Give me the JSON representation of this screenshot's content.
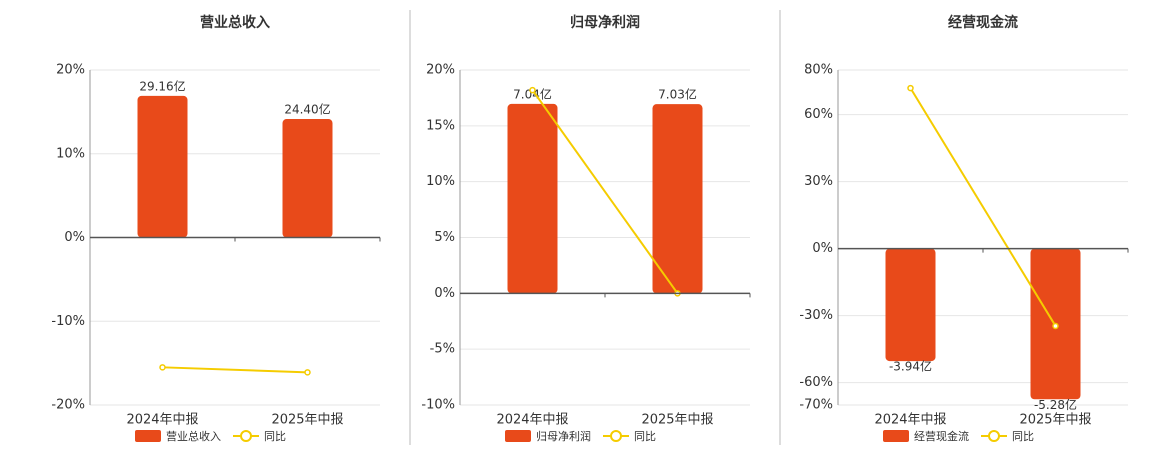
{
  "chart_data": [
    {
      "type": "bar",
      "title": "营业总收入",
      "categories": [
        "2024年中报",
        "2025年中报"
      ],
      "series": [
        {
          "name": "营业总收入",
          "color": "#e84a1a",
          "axis": "y2",
          "values": [
            29.16,
            24.4
          ],
          "value_labels": [
            "29.16亿",
            "24.40亿"
          ]
        },
        {
          "name": "同比",
          "type": "line",
          "color": "#f5cc00",
          "values": [
            -15.5,
            -16.1
          ]
        }
      ],
      "ylim": [
        -20,
        20
      ],
      "yticks": [
        {
          "value": 20,
          "label": "20%"
        },
        {
          "value": 10,
          "label": "10%"
        },
        {
          "value": 0,
          "label": "0%"
        },
        {
          "value": -10,
          "label": "-10%"
        },
        {
          "value": -20,
          "label": "-20%"
        }
      ],
      "y2lim": [
        -34.5,
        34.5
      ],
      "grid": true
    },
    {
      "type": "bar",
      "title": "归母净利润",
      "categories": [
        "2024年中报",
        "2025年中报"
      ],
      "series": [
        {
          "name": "归母净利润",
          "color": "#e84a1a",
          "axis": "y2",
          "values": [
            7.04,
            7.03
          ],
          "value_labels": [
            "7.04亿",
            "7.03亿"
          ]
        },
        {
          "name": "同比",
          "type": "line",
          "color": "#f5cc00",
          "values": [
            18.2,
            0
          ]
        }
      ],
      "ylim": [
        -10,
        20
      ],
      "yticks": [
        {
          "value": 20,
          "label": "20%"
        },
        {
          "value": 15,
          "label": "15%"
        },
        {
          "value": 10,
          "label": "10%"
        },
        {
          "value": 5,
          "label": "5%"
        },
        {
          "value": 0,
          "label": "0%"
        },
        {
          "value": -5,
          "label": "-5%"
        },
        {
          "value": -10,
          "label": "-10%"
        }
      ],
      "y2lim": [
        -4.15,
        8.3
      ],
      "grid": true
    },
    {
      "type": "bar",
      "title": "经营现金流",
      "categories": [
        "2024年中报",
        "2025年中报"
      ],
      "series": [
        {
          "name": "经营现金流",
          "color": "#e84a1a",
          "axis": "y2",
          "values": [
            -3.94,
            -5.28
          ],
          "value_labels": [
            "-3.94亿",
            "-5.28亿"
          ]
        },
        {
          "name": "同比",
          "type": "line",
          "color": "#f5cc00",
          "values": [
            71.9,
            -34.6
          ]
        }
      ],
      "ylim": [
        -70,
        80
      ],
      "yticks": [
        {
          "value": 80,
          "label": "80%"
        },
        {
          "value": 60,
          "label": "60%"
        },
        {
          "value": 30,
          "label": "30%"
        },
        {
          "value": 0,
          "label": "0%"
        },
        {
          "value": -30,
          "label": "-30%"
        },
        {
          "value": -60,
          "label": "-60%"
        },
        {
          "value": -70,
          "label": "-70%"
        }
      ],
      "y2lim": [
        -5.48,
        6.27
      ],
      "grid": true
    }
  ]
}
